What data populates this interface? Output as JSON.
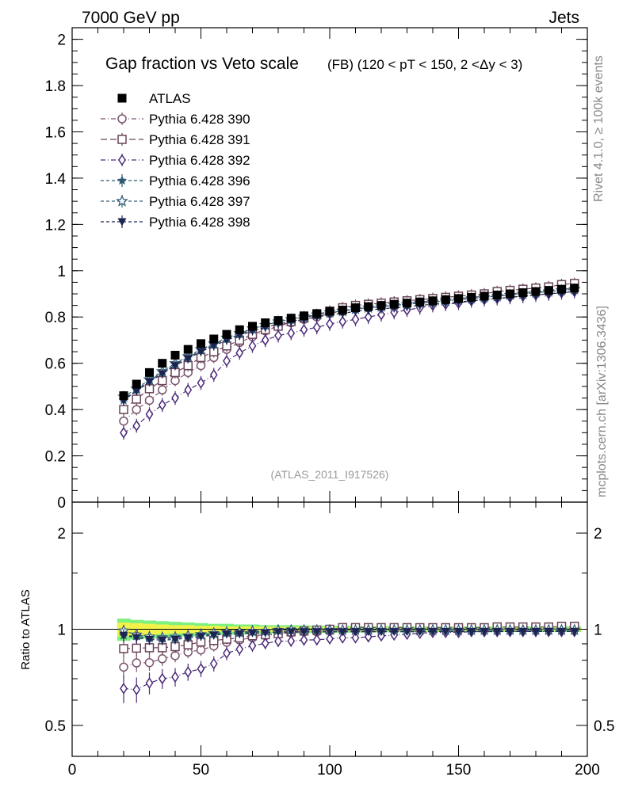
{
  "header": {
    "left_label": "7000 GeV pp",
    "right_label": "Jets"
  },
  "side_labels": {
    "rivet": "Rivet 4.1.0, ≥ 100k events",
    "mcplots": "mcplots.cern.ch [arXiv:1306.3436]"
  },
  "chart_data": [
    {
      "type": "scatter",
      "panel": "main",
      "title": "Gap fraction vs Veto scale",
      "subtitle": "(FB) (120 < pT < 150, 2 <Δy < 3)",
      "analysis_label": "(ATLAS_2011_I917526)",
      "xlabel": "",
      "ylabel": "",
      "xlim": [
        0,
        200
      ],
      "ylim": [
        0,
        2.05
      ],
      "x_ticks": [
        0,
        50,
        100,
        150,
        200
      ],
      "y_ticks": [
        0,
        0.2,
        0.4,
        0.6,
        0.8,
        1,
        1.2,
        1.4,
        1.6,
        1.8,
        2
      ],
      "y_tick_labels": [
        "0",
        "0.2",
        "0.4",
        "0.6",
        "0.8",
        "1",
        "1.2",
        "1.4",
        "1.6",
        "1.8",
        "2"
      ],
      "x": [
        20,
        25,
        30,
        35,
        40,
        45,
        50,
        55,
        60,
        65,
        70,
        75,
        80,
        85,
        90,
        95,
        100,
        105,
        110,
        115,
        120,
        125,
        130,
        135,
        140,
        145,
        150,
        155,
        160,
        165,
        170,
        175,
        180,
        185,
        190,
        195
      ],
      "legend": [
        {
          "label": "ATLAS",
          "key": "atlas"
        },
        {
          "label": "Pythia 6.428 390",
          "key": "p390"
        },
        {
          "label": "Pythia 6.428 391",
          "key": "p391"
        },
        {
          "label": "Pythia 6.428 392",
          "key": "p392"
        },
        {
          "label": "Pythia 6.428 396",
          "key": "p396"
        },
        {
          "label": "Pythia 6.428 397",
          "key": "p397"
        },
        {
          "label": "Pythia 6.428 398",
          "key": "p398"
        }
      ],
      "series": [
        {
          "key": "atlas",
          "name": "ATLAS",
          "marker": "filled-square",
          "color": "#000000",
          "dash": "",
          "err": 0.012,
          "values": [
            0.46,
            0.51,
            0.56,
            0.6,
            0.635,
            0.66,
            0.685,
            0.705,
            0.725,
            0.745,
            0.76,
            0.775,
            0.785,
            0.795,
            0.805,
            0.815,
            0.825,
            0.83,
            0.84,
            0.845,
            0.85,
            0.855,
            0.86,
            0.865,
            0.87,
            0.875,
            0.88,
            0.885,
            0.89,
            0.895,
            0.9,
            0.905,
            0.91,
            0.915,
            0.92,
            0.925
          ]
        },
        {
          "key": "p390",
          "name": "Pythia 6.428 390",
          "marker": "open-circle",
          "color": "#7a5470",
          "dash": "6,3,1,3",
          "err": 0.025,
          "values": [
            0.35,
            0.4,
            0.44,
            0.485,
            0.525,
            0.56,
            0.59,
            0.625,
            0.66,
            0.69,
            0.715,
            0.74,
            0.76,
            0.775,
            0.79,
            0.8,
            0.815,
            0.825,
            0.835,
            0.84,
            0.845,
            0.85,
            0.86,
            0.865,
            0.87,
            0.875,
            0.88,
            0.885,
            0.89,
            0.895,
            0.9,
            0.905,
            0.91,
            0.915,
            0.92,
            0.925
          ]
        },
        {
          "key": "p391",
          "name": "Pythia 6.428 391",
          "marker": "open-square",
          "color": "#6a4458",
          "dash": "8,4",
          "err": 0.025,
          "values": [
            0.4,
            0.445,
            0.49,
            0.525,
            0.56,
            0.59,
            0.625,
            0.65,
            0.675,
            0.7,
            0.725,
            0.745,
            0.76,
            0.78,
            0.795,
            0.81,
            0.825,
            0.84,
            0.85,
            0.855,
            0.86,
            0.865,
            0.87,
            0.875,
            0.88,
            0.885,
            0.89,
            0.895,
            0.9,
            0.91,
            0.915,
            0.92,
            0.925,
            0.93,
            0.94,
            0.945
          ]
        },
        {
          "key": "p392",
          "name": "Pythia 6.428 392",
          "marker": "open-diamond",
          "color": "#4b2a78",
          "dash": "6,3,1,3",
          "err": 0.03,
          "values": [
            0.3,
            0.33,
            0.38,
            0.42,
            0.45,
            0.485,
            0.515,
            0.55,
            0.61,
            0.645,
            0.675,
            0.7,
            0.72,
            0.73,
            0.745,
            0.755,
            0.77,
            0.78,
            0.79,
            0.8,
            0.81,
            0.82,
            0.83,
            0.84,
            0.85,
            0.855,
            0.86,
            0.87,
            0.875,
            0.88,
            0.885,
            0.89,
            0.895,
            0.9,
            0.905,
            0.91
          ]
        },
        {
          "key": "p396",
          "name": "Pythia 6.428 396",
          "marker": "filled-star",
          "color": "#2f5a72",
          "dash": "4,3",
          "err": 0.02,
          "values": [
            0.44,
            0.485,
            0.525,
            0.56,
            0.595,
            0.625,
            0.655,
            0.68,
            0.705,
            0.725,
            0.745,
            0.765,
            0.78,
            0.79,
            0.8,
            0.81,
            0.82,
            0.825,
            0.835,
            0.84,
            0.845,
            0.85,
            0.855,
            0.86,
            0.865,
            0.87,
            0.875,
            0.88,
            0.885,
            0.89,
            0.895,
            0.9,
            0.905,
            0.91,
            0.915,
            0.92
          ]
        },
        {
          "key": "p397",
          "name": "Pythia 6.428 397",
          "marker": "open-star",
          "color": "#35607a",
          "dash": "4,3",
          "err": 0.02,
          "values": [
            0.455,
            0.49,
            0.53,
            0.565,
            0.6,
            0.63,
            0.66,
            0.685,
            0.71,
            0.73,
            0.75,
            0.765,
            0.78,
            0.79,
            0.8,
            0.81,
            0.82,
            0.825,
            0.835,
            0.84,
            0.845,
            0.85,
            0.855,
            0.86,
            0.865,
            0.87,
            0.875,
            0.88,
            0.885,
            0.89,
            0.895,
            0.9,
            0.905,
            0.91,
            0.915,
            0.92
          ]
        },
        {
          "key": "p398",
          "name": "Pythia 6.428 398",
          "marker": "filled-triangle-down",
          "color": "#1c2450",
          "dash": "4,3",
          "err": 0.02,
          "values": [
            0.44,
            0.48,
            0.52,
            0.555,
            0.59,
            0.62,
            0.65,
            0.675,
            0.7,
            0.72,
            0.74,
            0.755,
            0.77,
            0.78,
            0.79,
            0.8,
            0.81,
            0.815,
            0.825,
            0.83,
            0.835,
            0.84,
            0.845,
            0.85,
            0.855,
            0.86,
            0.865,
            0.87,
            0.875,
            0.88,
            0.885,
            0.89,
            0.895,
            0.9,
            0.905,
            0.91
          ]
        }
      ]
    },
    {
      "type": "scatter",
      "panel": "ratio",
      "ylabel": "Ratio to ATLAS",
      "xlim": [
        0,
        200
      ],
      "ylim": [
        0.4,
        2.5
      ],
      "y_scale": "log",
      "x_ticks": [
        0,
        50,
        100,
        150,
        200
      ],
      "x_tick_labels": [
        "0",
        "50",
        "100",
        "150",
        "200"
      ],
      "y_ticks": [
        0.5,
        1,
        2
      ],
      "y_tick_labels": [
        "0.5",
        "1",
        "2"
      ],
      "reference_line": 1,
      "band": {
        "inner_color": "#f2f24a",
        "outer_color": "#7ef07e",
        "inner_halfwidth": [
          0.05,
          0.045,
          0.04,
          0.035,
          0.03,
          0.03,
          0.025,
          0.025,
          0.02,
          0.02,
          0.02,
          0.018,
          0.018,
          0.016,
          0.016,
          0.015,
          0.015,
          0.014,
          0.014,
          0.013,
          0.013,
          0.012,
          0.012,
          0.012,
          0.011,
          0.011,
          0.011,
          0.01,
          0.01,
          0.01,
          0.01,
          0.01,
          0.01,
          0.01,
          0.01,
          0.01
        ],
        "outer_halfwidth": [
          0.08,
          0.07,
          0.065,
          0.06,
          0.055,
          0.05,
          0.045,
          0.04,
          0.04,
          0.035,
          0.035,
          0.03,
          0.03,
          0.03,
          0.028,
          0.027,
          0.026,
          0.025,
          0.024,
          0.023,
          0.022,
          0.022,
          0.021,
          0.021,
          0.02,
          0.02,
          0.02,
          0.02,
          0.02,
          0.02,
          0.02,
          0.02,
          0.02,
          0.02,
          0.02,
          0.02
        ]
      }
    }
  ]
}
